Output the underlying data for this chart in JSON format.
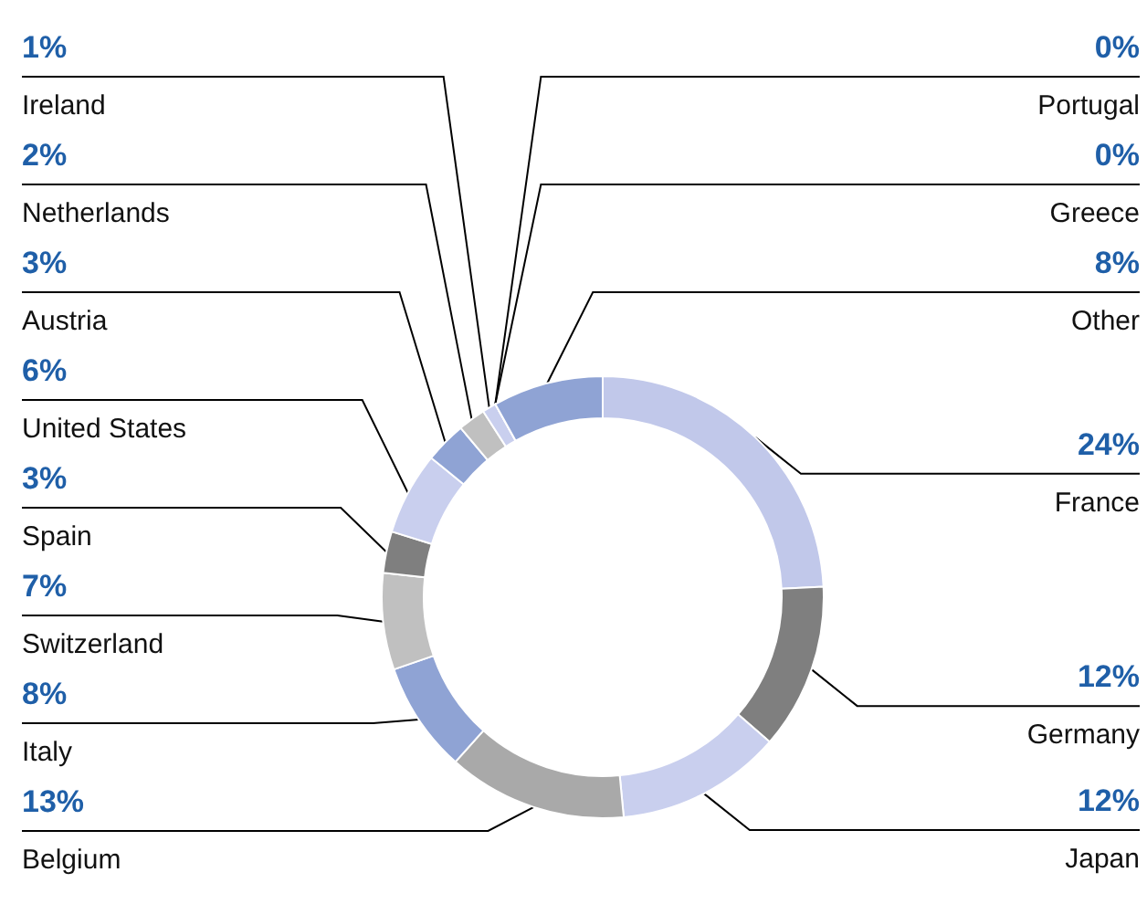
{
  "chart_data": {
    "type": "donut",
    "categories": [
      "France",
      "Germany",
      "Japan",
      "Belgium",
      "Italy",
      "Switzerland",
      "Spain",
      "United States",
      "Austria",
      "Netherlands",
      "Ireland",
      "Portugal",
      "Greece",
      "Other"
    ],
    "values": [
      24,
      12,
      12,
      13,
      8,
      7,
      3,
      6,
      3,
      2,
      1,
      0,
      0,
      8
    ],
    "value_labels": [
      "24%",
      "12%",
      "12%",
      "13%",
      "8%",
      "7%",
      "3%",
      "6%",
      "3%",
      "2%",
      "1%",
      "0%",
      "0%",
      "8%"
    ],
    "colors": [
      "#c1c8ea",
      "#7f7f7f",
      "#c9cfee",
      "#a9a9a9",
      "#8fa3d4",
      "#c0c0c0",
      "#7f7f7f",
      "#c9cfee",
      "#8fa3d4",
      "#c0c0c0",
      "#c9cfee",
      "#c9cfee",
      "#c0c0c0",
      "#8fa3d4"
    ],
    "legend": false
  }
}
